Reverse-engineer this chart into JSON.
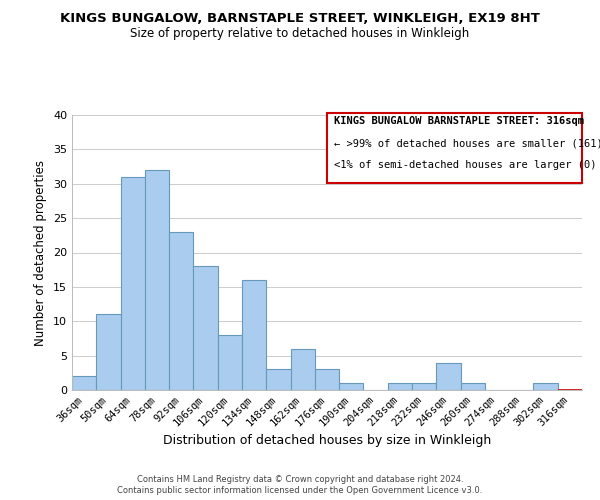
{
  "title": "KINGS BUNGALOW, BARNSTAPLE STREET, WINKLEIGH, EX19 8HT",
  "subtitle": "Size of property relative to detached houses in Winkleigh",
  "xlabel": "Distribution of detached houses by size in Winkleigh",
  "ylabel": "Number of detached properties",
  "bin_labels": [
    "36sqm",
    "50sqm",
    "64sqm",
    "78sqm",
    "92sqm",
    "106sqm",
    "120sqm",
    "134sqm",
    "148sqm",
    "162sqm",
    "176sqm",
    "190sqm",
    "204sqm",
    "218sqm",
    "232sqm",
    "246sqm",
    "260sqm",
    "274sqm",
    "288sqm",
    "302sqm",
    "316sqm"
  ],
  "bar_heights": [
    2,
    11,
    31,
    32,
    23,
    18,
    8,
    16,
    3,
    6,
    3,
    1,
    0,
    1,
    1,
    4,
    1,
    0,
    0,
    1,
    0
  ],
  "bar_color": "#aaccee",
  "bar_edge_color": "#6699bb",
  "highlight_bar_index": 20,
  "highlight_edge_color": "#cc0000",
  "ylim": [
    0,
    40
  ],
  "yticks": [
    0,
    5,
    10,
    15,
    20,
    25,
    30,
    35,
    40
  ],
  "annotation_title": "KINGS BUNGALOW BARNSTAPLE STREET: 316sqm",
  "annotation_line1": "← >99% of detached houses are smaller (161)",
  "annotation_line2": "<1% of semi-detached houses are larger (0) →",
  "annotation_box_facecolor": "#ffffff",
  "annotation_box_edgecolor": "#cc0000",
  "footer_line1": "Contains HM Land Registry data © Crown copyright and database right 2024.",
  "footer_line2": "Contains public sector information licensed under the Open Government Licence v3.0.",
  "grid_color": "#cccccc",
  "background_color": "#ffffff",
  "title_fontsize": 9.5,
  "subtitle_fontsize": 8.5,
  "ylabel_fontsize": 8.5,
  "xlabel_fontsize": 9,
  "tick_fontsize": 8,
  "xtick_fontsize": 7.5,
  "ann_fontsize": 7.5,
  "footer_fontsize": 6.0
}
